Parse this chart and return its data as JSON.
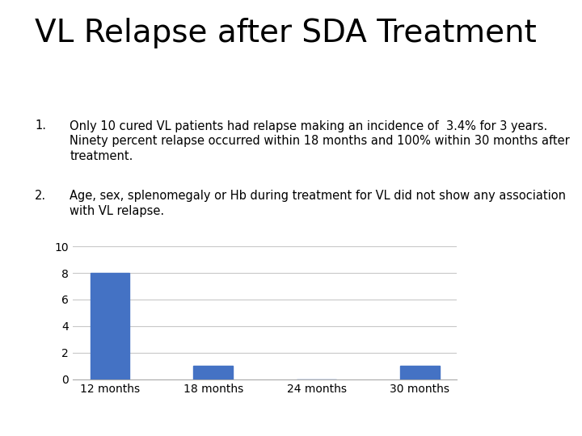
{
  "title": "VL Relapse after SDA Treatment",
  "title_fontsize": 28,
  "bullet1_number": "1.",
  "bullet1_text": "Only 10 cured VL patients had relapse making an incidence of  3.4% for 3 years.\nNinety percent relapse occurred within 18 months and 100% within 30 months after\ntreatment.",
  "bullet2_number": "2.",
  "bullet2_text": "Age, sex, splenomegaly or Hb during treatment for VL did not show any association\nwith VL relapse.",
  "categories": [
    "12 months",
    "18 months",
    "24 months",
    "30 months"
  ],
  "values": [
    8,
    1,
    0,
    1
  ],
  "bar_color": "#4472C4",
  "ylim": [
    0,
    10
  ],
  "yticks": [
    0,
    2,
    4,
    6,
    8,
    10
  ],
  "background_color": "#ffffff",
  "grid_color": "#c8c8c8",
  "text_color": "#000000",
  "bullet_fontsize": 10.5,
  "axis_fontsize": 10
}
